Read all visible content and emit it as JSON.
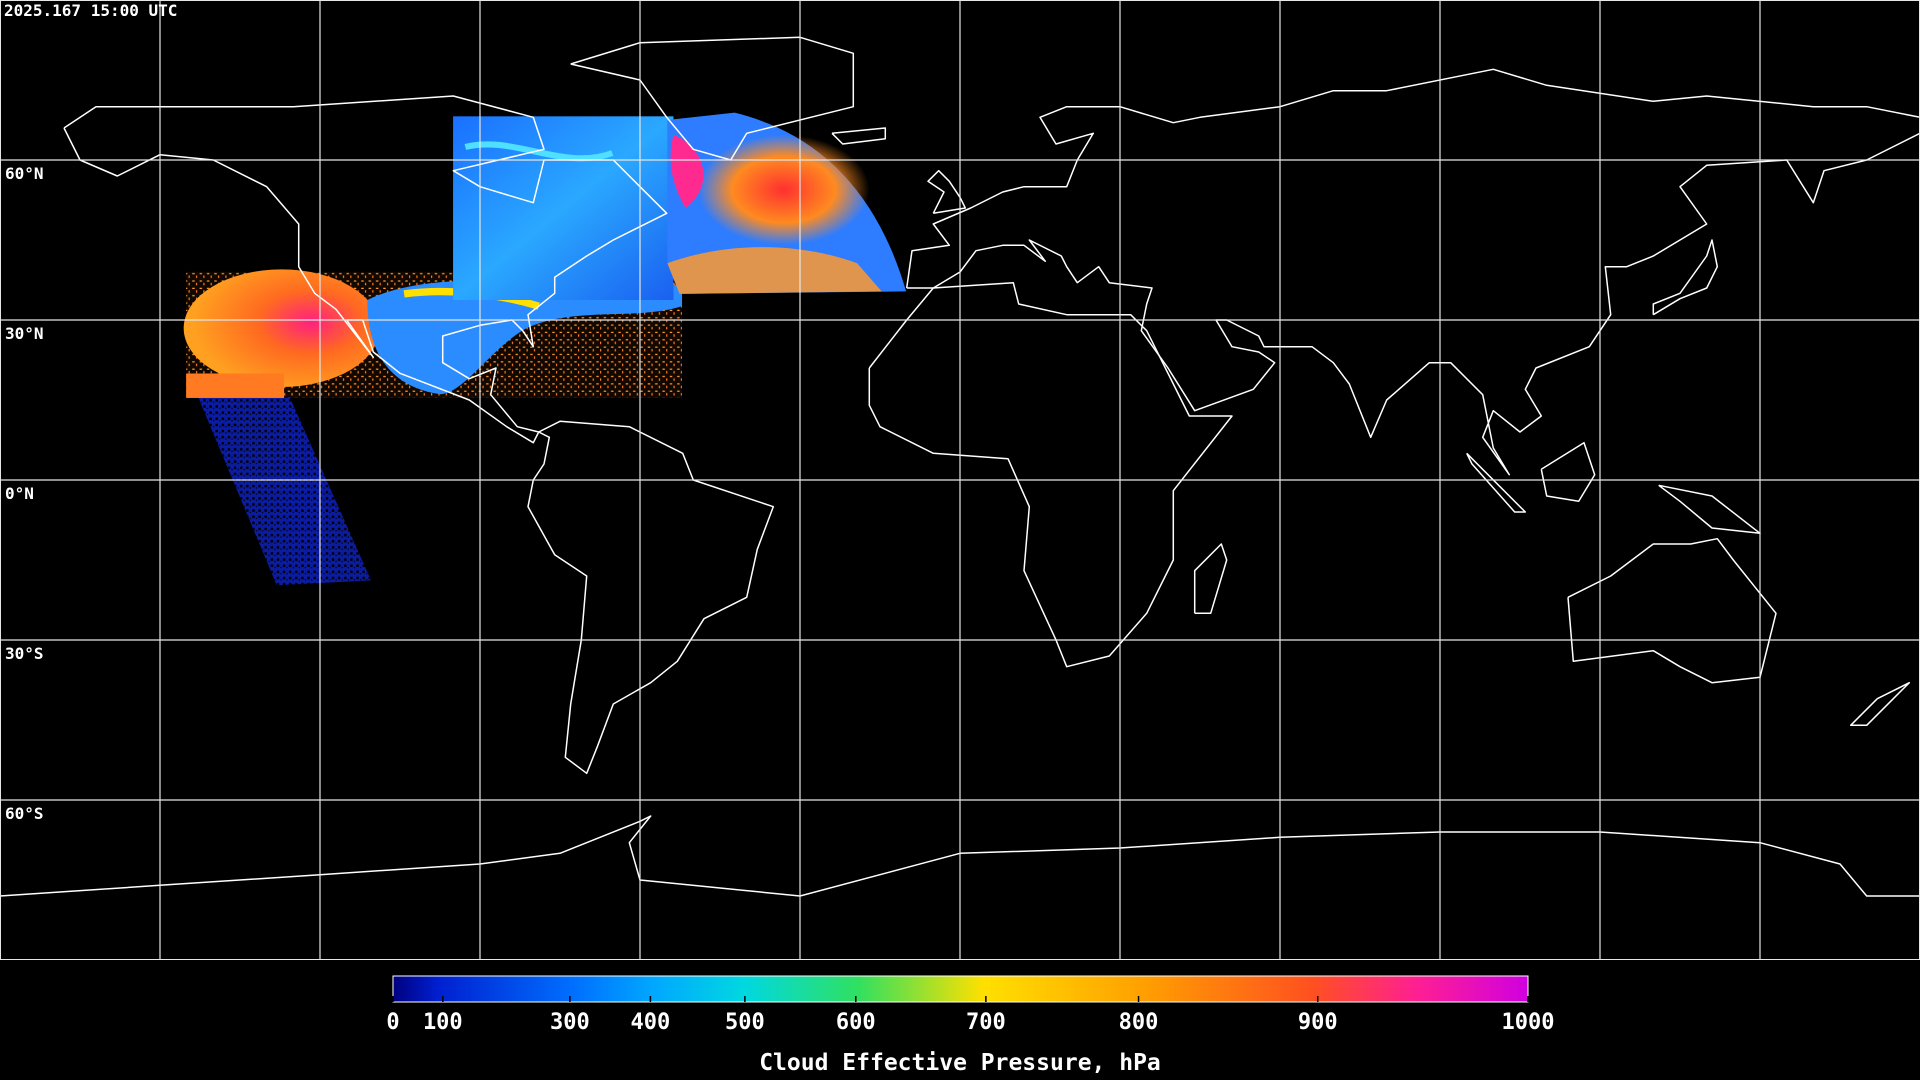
{
  "header": {
    "timestamp": "2025.167 15:00 UTC"
  },
  "map": {
    "lat_ticks": [
      {
        "value": 60,
        "label": "60°N"
      },
      {
        "value": 30,
        "label": "30°N"
      },
      {
        "value": 0,
        "label": "0°N"
      },
      {
        "value": -30,
        "label": "30°S"
      },
      {
        "value": -60,
        "label": "60°S"
      }
    ],
    "lon_ticks": [
      -150,
      -120,
      -90,
      -60,
      -30,
      0,
      30,
      60,
      90,
      120,
      150
    ]
  },
  "colorbar": {
    "label": "Cloud Effective Pressure, hPa",
    "range": [
      0,
      1000
    ],
    "ticks": [
      0,
      100,
      300,
      400,
      500,
      600,
      700,
      800,
      900,
      1000
    ]
  }
}
